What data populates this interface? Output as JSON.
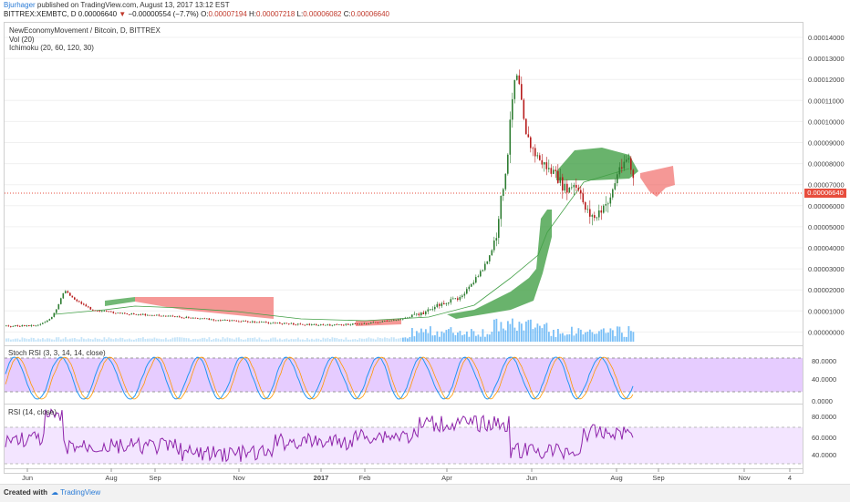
{
  "header": {
    "user": "Bjurhager",
    "published_text": "published on TradingView.com, August 13, 2017 13:12 EST",
    "symbol_line": "BITTREX:XEMBTC, D  0.00006640",
    "change_arrow": "▼",
    "change": "−0.00000554 (−7.7%)",
    "o_label": "O:",
    "o_value": "0.00007194",
    "h_label": "H:",
    "h_value": "0.00007218",
    "l_label": "L:",
    "l_value": "0.00006082",
    "c_label": "C:",
    "c_value": "0.00006640"
  },
  "indicators": {
    "title": "NewEconomyMovement / Bitcoin, D, BITTREX",
    "vol": "Vol (20)",
    "ichimoku": "Ichimoku (20, 60, 120, 30)",
    "stoch": "Stoch RSI (3, 3, 14, 14, close)",
    "rsi": "RSI (14, close)"
  },
  "current_price_tag": "0.00006640",
  "price_axis": [
    "0.00014000",
    "0.00013000",
    "0.00012000",
    "0.00011000",
    "0.00010000",
    "0.00009000",
    "0.00008000",
    "0.00007000",
    "0.00006000",
    "0.00005000",
    "0.00004000",
    "0.00003000",
    "0.00002000",
    "0.00001000",
    "0.00000000"
  ],
  "stoch_axis": [
    "80.0000",
    "40.0000",
    "0.0000"
  ],
  "rsi_axis": [
    "80.0000",
    "60.0000",
    "40.0000"
  ],
  "time_axis": [
    "Jun",
    "Aug",
    "Sep",
    "Nov",
    "2017",
    "Feb",
    "Apr",
    "Jun",
    "Aug",
    "Sep",
    "Nov",
    "4"
  ],
  "footer": {
    "created": "Created with",
    "brand": "TradingView"
  },
  "colors": {
    "bull": "#2e7d32",
    "bear": "#b71c1c",
    "cloud_green": "#43a047",
    "cloud_red": "#ef5350",
    "stoch_bg": "#e6ccff",
    "rsi_bg": "#f3e5ff",
    "volume": "#64b5f6",
    "rsi_line": "#8e24aa"
  }
}
